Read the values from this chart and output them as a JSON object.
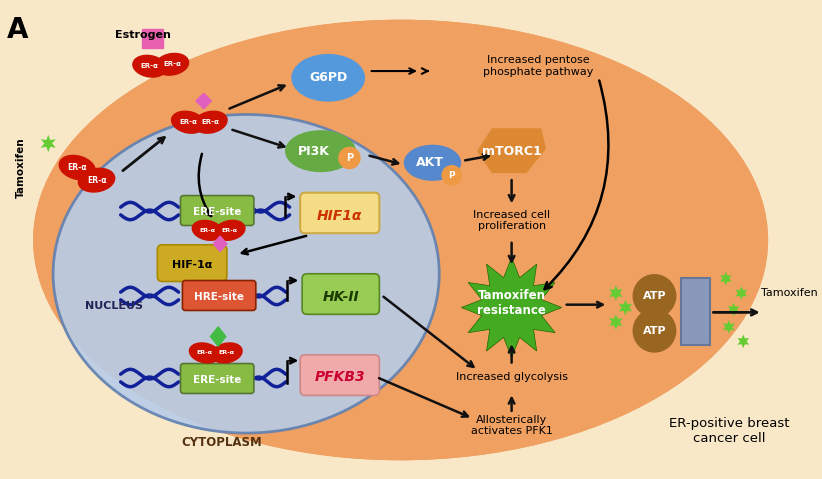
{
  "bg_color": "#f8e8c8",
  "cell_outer_color": "#f0a060",
  "nucleus_color": "#b8cce8",
  "nucleus_border": "#6080b0",
  "bottom_right_text": "ER-positive breast\ncancer cell",
  "labels": {
    "estrogen": "Estrogen",
    "tamoxifen_left": "Tamoxifen",
    "g6pd": "G6PD",
    "pi3k": "PI3K",
    "akt": "AKT",
    "mtorc1": "mTORC1",
    "increased_pentose": "Increased pentose\nphosphate pathway",
    "increased_cell": "Increased cell\nproliferation",
    "tamoxifen_resistance": "Tamoxifen\nresistance",
    "increased_glycolysis": "Increased glycolysis",
    "allosterically": "Allosterically\nactivates PFK1",
    "hif1a": "HIF1α",
    "hif1a_protein": "HIF-1α",
    "hk2": "HK-II",
    "pfkb3": "PFKB3",
    "ere_site1": "ERE-site",
    "ere_site2": "ERE-site",
    "hre_site": "HRE-site",
    "nucleus_label": "NUCLEUS",
    "cytoplasm_label": "CYTOPLASM",
    "tamoxifen_right": "Tamoxifen",
    "atp": "ATP",
    "p_label": "P",
    "er_alpha": "ER-α"
  },
  "colors": {
    "er_alpha_red": "#cc1100",
    "er_alpha_dark": "#aa1100",
    "estrogen_pink": "#e860b0",
    "diamond_pink": "#e060c0",
    "diamond_green": "#44bb44",
    "g6pd_blue": "#5599dd",
    "pi3k_green": "#66aa44",
    "akt_blue": "#5588cc",
    "mtorc1_orange": "#dd8833",
    "hif1a_box_fill": "#f5dd88",
    "hif1a_box_border": "#ccaa44",
    "hk2_box": "#99cc55",
    "pfkb3_box": "#f0aaaa",
    "ere_green": "#88bb44",
    "hre_red": "#dd5533",
    "hif1a_protein_yellow": "#ccaa22",
    "tamoxifen_resistance_green": "#44aa22",
    "atp_brown": "#996622",
    "star_green": "#66cc33",
    "arrow_color": "#111111",
    "dna_blue": "#112299",
    "p_orange": "#ee9944"
  }
}
